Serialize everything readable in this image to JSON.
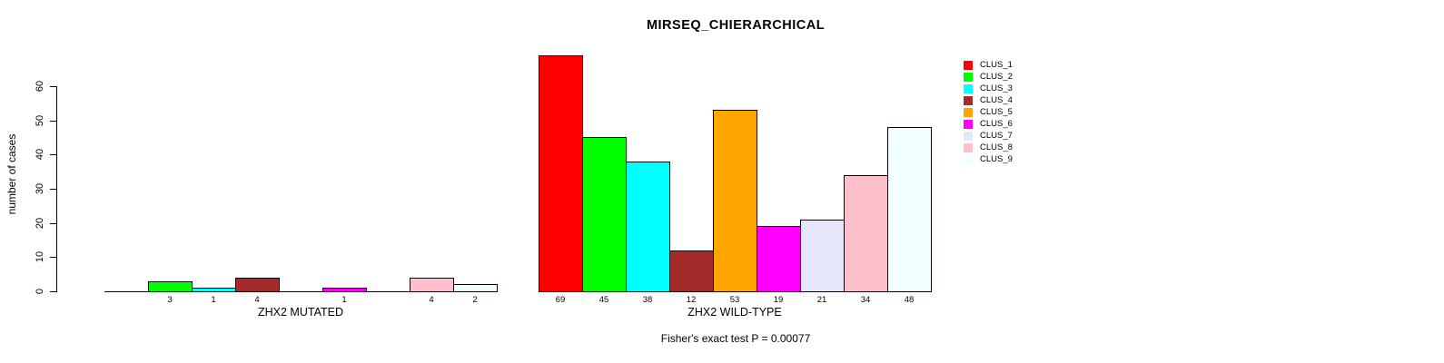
{
  "chart_data": {
    "type": "bar",
    "title": "MIRSEQ_CHIERARCHICAL",
    "ylabel": "number of cases",
    "xlabel": "",
    "yticks": [
      0,
      10,
      20,
      30,
      40,
      50,
      60
    ],
    "ylim": [
      0,
      69
    ],
    "grid": false,
    "legend_position": "top-right-outside",
    "legend": [
      {
        "label": "CLUS_1",
        "color": "#FF0000"
      },
      {
        "label": "CLUS_2",
        "color": "#00FF00"
      },
      {
        "label": "CLUS_3",
        "color": "#00FFFF"
      },
      {
        "label": "CLUS_4",
        "color": "#A52A2A"
      },
      {
        "label": "CLUS_5",
        "color": "#FFA500"
      },
      {
        "label": "CLUS_6",
        "color": "#FF00FF"
      },
      {
        "label": "CLUS_7",
        "color": "#E6E6FA"
      },
      {
        "label": "CLUS_8",
        "color": "#FFC0CB"
      },
      {
        "label": "CLUS_9",
        "color": "#F0FFFF"
      }
    ],
    "groups": [
      {
        "label": "ZHX2 MUTATED",
        "values": [
          0,
          3,
          1,
          4,
          0,
          1,
          0,
          4,
          2
        ]
      },
      {
        "label": "ZHX2 WILD-TYPE",
        "values": [
          69,
          45,
          38,
          12,
          53,
          19,
          21,
          34,
          48
        ]
      }
    ],
    "bar_label_rule": "value shown under each bar, hidden when 0",
    "caption": "Fisher's exact test P = 0.00077",
    "axis_color": "#000000",
    "background_color": "#FFFFFF"
  }
}
